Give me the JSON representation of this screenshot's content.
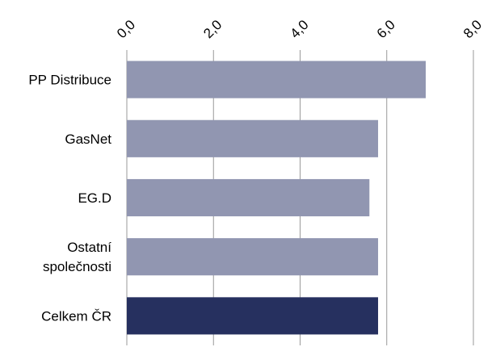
{
  "chart_data": {
    "type": "bar",
    "orientation": "horizontal",
    "title": "",
    "xlabel": "",
    "ylabel": "",
    "categories": [
      [
        "PP Distribuce"
      ],
      [
        "GasNet"
      ],
      [
        "EG.D"
      ],
      [
        "Ostatní",
        "společnosti"
      ],
      [
        "Celkem ČR"
      ]
    ],
    "values": [
      6.9,
      5.8,
      5.6,
      5.8,
      5.8
    ],
    "xlim": [
      0,
      8
    ],
    "x_ticks": [
      "0,0",
      "2,0",
      "4,0",
      "6,0",
      "8,0"
    ],
    "x_tick_values": [
      0,
      2,
      4,
      6,
      8
    ],
    "tick_position": "top",
    "grid": "vertical",
    "legend": "none",
    "colors": {
      "bar": "#9196b1",
      "highlight_bar": "#26305f",
      "grid": "#999999"
    },
    "highlight_index": 4
  }
}
